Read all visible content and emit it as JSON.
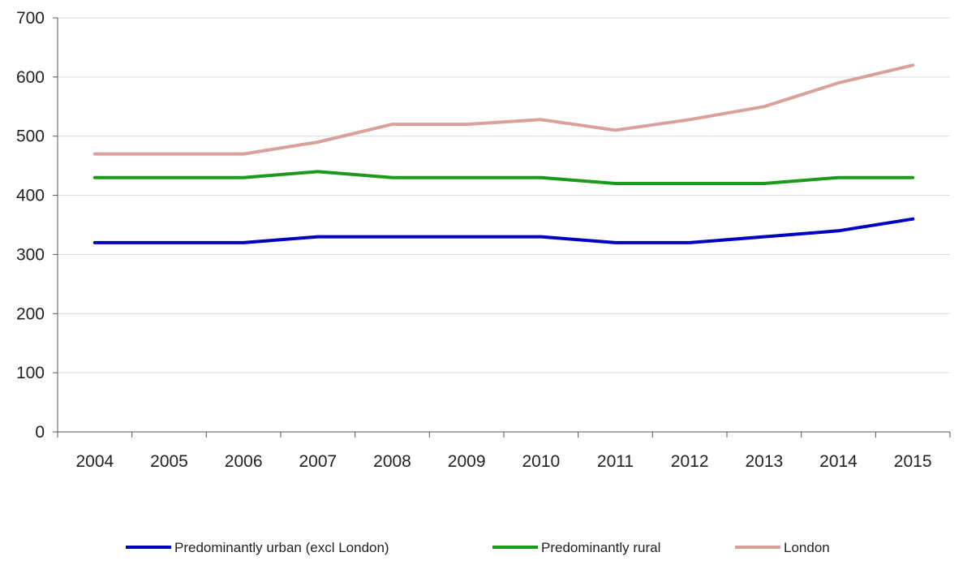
{
  "chart_data": {
    "type": "line",
    "categories": [
      "2004",
      "2005",
      "2006",
      "2007",
      "2008",
      "2009",
      "2010",
      "2011",
      "2012",
      "2013",
      "2014",
      "2015"
    ],
    "series": [
      {
        "name": "Predominantly urban (excl London)",
        "color": "#0000c0",
        "values": [
          320,
          320,
          320,
          330,
          330,
          330,
          330,
          320,
          320,
          330,
          340,
          360
        ]
      },
      {
        "name": "Predominantly rural",
        "color": "#1a9a1a",
        "values": [
          430,
          430,
          430,
          440,
          430,
          430,
          430,
          420,
          420,
          420,
          430,
          430
        ]
      },
      {
        "name": "London",
        "color": "#d9a09c",
        "values": [
          470,
          470,
          470,
          490,
          520,
          520,
          528,
          510,
          528,
          550,
          590,
          620
        ]
      }
    ],
    "y_ticks": [
      "0",
      "100",
      "200",
      "300",
      "400",
      "500",
      "600",
      "700"
    ],
    "ylim": [
      0,
      700
    ],
    "grid": "horizontal",
    "legend_position": "bottom"
  }
}
